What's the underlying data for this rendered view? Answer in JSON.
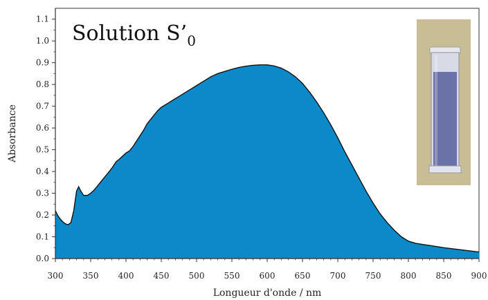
{
  "chart_data": {
    "type": "area",
    "title": "Solution S’",
    "title_subscript": "0",
    "xlabel": "Longueur d'onde / nm",
    "ylabel": "Absorbance",
    "xlim": [
      300,
      900
    ],
    "ylim": [
      0.0,
      1.15
    ],
    "x_ticks": [
      "300",
      "350",
      "400",
      "450",
      "500",
      "550",
      "600",
      "650",
      "700",
      "750",
      "800",
      "850",
      "900"
    ],
    "y_ticks": [
      "0.0",
      "0.1",
      "0.2",
      "0.3",
      "0.4",
      "0.5",
      "0.6",
      "0.7",
      "0.8",
      "0.9",
      "1.0",
      "1.1"
    ],
    "grid": false,
    "fill_color": "#0b89c9",
    "line_color": "#111111",
    "x": [
      300,
      303,
      306,
      310,
      314,
      318,
      322,
      326,
      330,
      333,
      336,
      340,
      345,
      350,
      355,
      360,
      365,
      370,
      375,
      380,
      383,
      386,
      390,
      395,
      400,
      405,
      410,
      415,
      420,
      425,
      430,
      435,
      440,
      445,
      450,
      460,
      470,
      480,
      490,
      500,
      510,
      520,
      530,
      540,
      550,
      560,
      570,
      580,
      590,
      600,
      610,
      620,
      630,
      640,
      650,
      660,
      670,
      680,
      690,
      700,
      710,
      720,
      730,
      740,
      750,
      760,
      770,
      780,
      790,
      800,
      810,
      820,
      830,
      840,
      850,
      860,
      870,
      880,
      890,
      900
    ],
    "values": [
      0.22,
      0.2,
      0.185,
      0.17,
      0.16,
      0.155,
      0.165,
      0.22,
      0.31,
      0.33,
      0.31,
      0.29,
      0.29,
      0.3,
      0.315,
      0.335,
      0.355,
      0.375,
      0.395,
      0.415,
      0.43,
      0.445,
      0.455,
      0.47,
      0.485,
      0.495,
      0.515,
      0.54,
      0.565,
      0.59,
      0.62,
      0.64,
      0.66,
      0.68,
      0.695,
      0.715,
      0.735,
      0.755,
      0.775,
      0.795,
      0.815,
      0.835,
      0.85,
      0.86,
      0.87,
      0.878,
      0.884,
      0.888,
      0.89,
      0.89,
      0.885,
      0.875,
      0.858,
      0.835,
      0.805,
      0.765,
      0.72,
      0.67,
      0.615,
      0.555,
      0.49,
      0.43,
      0.37,
      0.31,
      0.255,
      0.205,
      0.165,
      0.13,
      0.1,
      0.08,
      0.07,
      0.065,
      0.06,
      0.055,
      0.05,
      0.046,
      0.042,
      0.038,
      0.034,
      0.03
    ]
  },
  "inset": {
    "image": "cuvette-photo",
    "liquid_color": "#6b72a8",
    "background_color": "#c9bd96"
  }
}
